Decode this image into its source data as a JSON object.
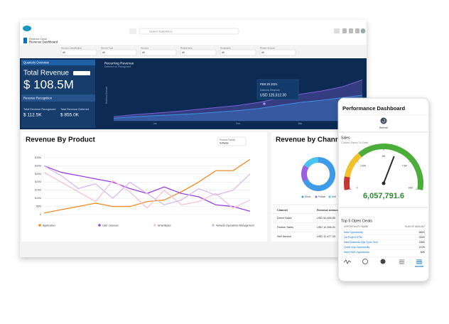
{
  "header": {
    "search_placeholder": "Search Salesforce",
    "app_name": "Revenue Cloud",
    "dashboard_title": "Revenue Dashboard"
  },
  "filters": [
    {
      "label": "Account Classification",
      "value": "All"
    },
    {
      "label": "Service Type",
      "value": "All"
    },
    {
      "label": "Account",
      "value": "All"
    },
    {
      "label": "Relationship",
      "value": "All"
    },
    {
      "label": "Geography",
      "value": "All"
    },
    {
      "label": "Rebate Account",
      "value": "All"
    }
  ],
  "overview": {
    "heading": "Quarterly Overview",
    "total_label": "Total Revenue",
    "total_value": "$ 108.5M",
    "section": "Revenue Recognition",
    "recognized_label": "Total Revenue Recognized",
    "recognized_value": "$ 112.5K",
    "deferred_label": "Total Revenue Deferred",
    "deferred_value": "$ 855.0K"
  },
  "tooltip": {
    "date": "FEB 20 2021",
    "label": "Deferred Revenue",
    "value": "USD 125,512.30"
  },
  "product_filter": {
    "label": "Product Family",
    "value": "Software"
  },
  "channel_table": {
    "columns": [
      "Channel",
      "Revenue Amount"
    ]
  },
  "phone": {
    "title": "Performance Dashboard",
    "refresh": "Refresh"
  },
  "deals": {
    "title": "Top 5 Open Deals",
    "columns": [
      "OPPORTUNITY NAME",
      "SUM OF AMOUNT"
    ],
    "rows": [
      [
        "New Opportunity",
        "581K"
      ],
      [
        "Qa Project 575e",
        "252K"
      ],
      [
        "New Business Opp Sync Tech",
        "186K"
      ],
      [
        "Quick Hop Opportunity",
        "110K"
      ],
      [
        "New DMS Opportunity",
        "80K"
      ]
    ]
  },
  "chart_data": [
    {
      "type": "area",
      "title": "Recurring Revenue",
      "subtitle": "Deferred vs. Recognized",
      "ylabel": "Revenue Amount",
      "categories": [
        null,
        null,
        "Jan",
        null,
        null,
        null,
        "Feb",
        null,
        null,
        "Mar",
        null,
        null,
        null
      ],
      "series": [
        {
          "color": "#7b5fd6",
          "values": [
            8,
            12,
            15,
            18,
            22,
            26,
            30,
            36,
            44,
            52,
            58,
            66,
            80
          ]
        },
        {
          "color": "#3f8fe0",
          "values": [
            5,
            8,
            10,
            12,
            14,
            17,
            20,
            24,
            30,
            36,
            40,
            45,
            50
          ]
        }
      ],
      "ylim": [
        0,
        100
      ]
    },
    {
      "type": "line",
      "title": "Revenue By Product",
      "categories": [
        null,
        null,
        null,
        null,
        null,
        null,
        null,
        null,
        null,
        null,
        null,
        null,
        null
      ],
      "series": [
        {
          "name": "Application",
          "color": "#f28c28",
          "values": [
            1,
            3,
            5,
            7,
            5,
            5,
            8,
            9,
            14,
            20,
            27,
            27,
            34
          ]
        },
        {
          "name": "User Licenses",
          "color": "#9b3fe0",
          "values": [
            30,
            26,
            24,
            22,
            20,
            16,
            13,
            17,
            13,
            11,
            6,
            5,
            2
          ]
        },
        {
          "name": "SmartBytes",
          "color": "#f3c2d4",
          "values": [
            26,
            20,
            14,
            8,
            21,
            14,
            4,
            15,
            6,
            8,
            13,
            4,
            9
          ]
        },
        {
          "name": "Network Operations Management",
          "color": "#d9b8ee",
          "values": [
            30,
            24,
            16,
            19,
            10,
            20,
            13,
            6,
            9,
            16,
            12,
            15,
            25
          ]
        }
      ],
      "ylim": [
        0,
        35
      ],
      "yticks": [
        0,
        {
          "value": 5,
          "label": "$5M"
        },
        {
          "value": 10,
          "label": "$10M"
        },
        {
          "value": 15,
          "label": "$15M"
        },
        {
          "value": 20,
          "label": "$20M"
        },
        {
          "value": 25,
          "label": "$25M"
        },
        {
          "value": 30,
          "label": "$30M"
        },
        {
          "value": 35,
          "label": "$35M"
        }
      ],
      "grid": true
    },
    {
      "type": "donut",
      "title": "Revenue by Channel",
      "categories": [
        "Direct",
        "Partner",
        "Self"
      ],
      "row_labels": [
        "Direct Sales",
        "Partner Sales",
        "Self Service"
      ],
      "values": [
        52656.55,
        12456.31,
        12477.03
      ],
      "value_labels": [
        "USD 52,656.55",
        "USD 12,456.31",
        "USD 12,477.03"
      ],
      "colors": [
        "#3f9be8",
        "#9b5fe0",
        "#4cc3f0"
      ]
    },
    {
      "type": "gauge",
      "title": "Sales",
      "subtitle": "Closed Sales To Date",
      "value": 6057791.6,
      "value_label": "6,057,791.6",
      "ylim": [
        0,
        10000000
      ],
      "yticks": [
        0,
        {
          "value": 2500000,
          "label": "2.5M"
        },
        {
          "value": 5000000,
          "label": "5M"
        },
        {
          "value": 7500000,
          "label": "7.5M"
        },
        {
          "value": 10000000,
          "label": "10M"
        }
      ]
    }
  ]
}
